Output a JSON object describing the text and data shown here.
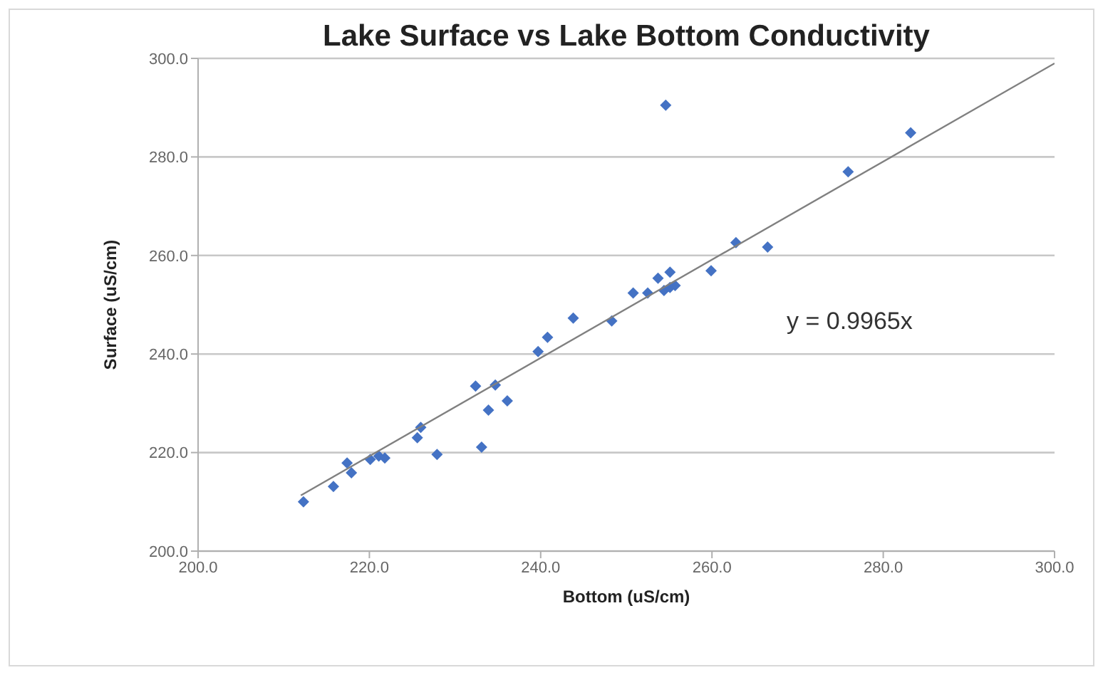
{
  "chart_data": {
    "type": "scatter",
    "title": "Lake Surface vs Lake Bottom Conductivity",
    "xlabel": "Bottom (uS/cm)",
    "ylabel": "Surface (uS/cm)",
    "annotations": [
      "y = 0.9965x"
    ],
    "marker": "diamond",
    "grid": "y",
    "xlim": [
      200,
      300
    ],
    "ylim": [
      200,
      300
    ],
    "xticks": [
      {
        "value": 200,
        "label": "200.0"
      },
      {
        "value": 220,
        "label": "220.0"
      },
      {
        "value": 240,
        "label": "240.0"
      },
      {
        "value": 260,
        "label": "260.0"
      },
      {
        "value": 280,
        "label": "280.0"
      },
      {
        "value": 300,
        "label": "300.0"
      }
    ],
    "yticks": [
      {
        "value": 200,
        "label": "200.0"
      },
      {
        "value": 220,
        "label": "220.0"
      },
      {
        "value": 240,
        "label": "240.0"
      },
      {
        "value": 260,
        "label": "260.0"
      },
      {
        "value": 280,
        "label": "280.0"
      },
      {
        "value": 300,
        "label": "300.0"
      }
    ],
    "series": [
      {
        "color": "#4472c4",
        "x": [
          212.3,
          215.8,
          217.4,
          217.9,
          220.1,
          221.1,
          221.8,
          225.6,
          226.0,
          227.9,
          232.4,
          233.1,
          233.9,
          234.7,
          236.1,
          239.7,
          240.8,
          243.8,
          248.3,
          250.8,
          252.5,
          253.7,
          254.4,
          255.1,
          255.1,
          255.7,
          259.9,
          262.8,
          266.5,
          275.9,
          283.2,
          254.6
        ],
        "values": [
          210.0,
          213.1,
          217.9,
          215.9,
          218.6,
          219.3,
          218.9,
          223.0,
          225.1,
          219.6,
          233.5,
          221.1,
          228.6,
          233.7,
          230.5,
          240.5,
          243.4,
          247.3,
          246.7,
          252.4,
          252.4,
          255.4,
          252.9,
          256.6,
          253.5,
          253.9,
          256.9,
          262.6,
          261.7,
          277.0,
          284.9,
          290.5
        ]
      },
      {
        "type": "line",
        "marker": "none",
        "color": "#808080",
        "x": [
          212,
          300
        ],
        "values": [
          211.3,
          299.0
        ]
      }
    ]
  }
}
